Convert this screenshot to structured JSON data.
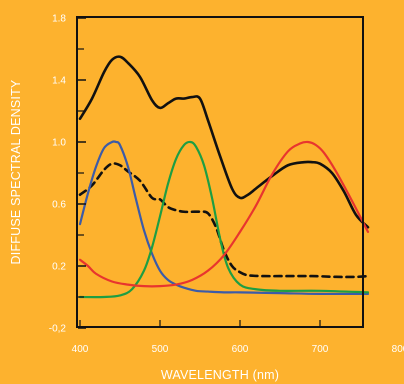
{
  "colors": {
    "background": "#FDB22E",
    "frame": "#111111",
    "tick_text": "#FFFFFF"
  },
  "chart_data": {
    "type": "line",
    "xlabel": "WAVELENGTH (nm)",
    "ylabel": "DIFFUSE SPECTRAL DENSITY",
    "xlim": [
      400,
      800
    ],
    "ylim": [
      -0.2,
      1.8
    ],
    "x_ticks": [
      {
        "value": 400,
        "label": "400"
      },
      {
        "value": 500,
        "label": "500"
      },
      {
        "value": 600,
        "label": "600"
      },
      {
        "value": 700,
        "label": "700"
      },
      {
        "value": 800,
        "label": "800"
      }
    ],
    "y_ticks": [
      {
        "value": -0.2,
        "label": "-0,2"
      },
      {
        "value": 0.2,
        "label": "0.2"
      },
      {
        "value": 0.6,
        "label": "0.6"
      },
      {
        "value": 1.0,
        "label": "1.0"
      },
      {
        "value": 1.4,
        "label": "1.4"
      },
      {
        "value": 1.8,
        "label": "1.8"
      }
    ],
    "y_minor_ticks": [
      0.0,
      0.4,
      0.8,
      1.2,
      1.6
    ],
    "grid": false,
    "legend": "none",
    "series": [
      {
        "color": "#111111",
        "style": "solid",
        "x": [
          400,
          415,
          430,
          440,
          450,
          460,
          475,
          490,
          500,
          510,
          520,
          530,
          540,
          550,
          560,
          575,
          590,
          600,
          610,
          620,
          640,
          660,
          680,
          690,
          700,
          715,
          730,
          745,
          760
        ],
        "y": [
          1.15,
          1.28,
          1.45,
          1.53,
          1.55,
          1.51,
          1.42,
          1.27,
          1.22,
          1.25,
          1.28,
          1.28,
          1.29,
          1.28,
          1.14,
          0.91,
          0.7,
          0.64,
          0.66,
          0.7,
          0.78,
          0.85,
          0.87,
          0.87,
          0.86,
          0.8,
          0.68,
          0.53,
          0.45
        ]
      },
      {
        "color": "#111111",
        "style": "dashed",
        "x": [
          400,
          415,
          430,
          440,
          450,
          460,
          475,
          490,
          500,
          510,
          520,
          530,
          540,
          550,
          560,
          570,
          580,
          590,
          600,
          610,
          630,
          660,
          690,
          720,
          745,
          760
        ],
        "y": [
          0.66,
          0.72,
          0.82,
          0.86,
          0.85,
          0.81,
          0.75,
          0.64,
          0.63,
          0.58,
          0.56,
          0.55,
          0.55,
          0.55,
          0.54,
          0.45,
          0.3,
          0.2,
          0.16,
          0.14,
          0.135,
          0.135,
          0.135,
          0.13,
          0.13,
          0.135
        ]
      },
      {
        "color": "#3C5BA8",
        "style": "solid",
        "x": [
          400,
          410,
          420,
          430,
          440,
          445,
          450,
          460,
          470,
          480,
          490,
          500,
          510,
          520,
          530,
          545,
          560,
          580,
          600,
          650,
          700,
          760
        ],
        "y": [
          0.47,
          0.67,
          0.84,
          0.96,
          1.0,
          1.0,
          0.98,
          0.84,
          0.63,
          0.43,
          0.28,
          0.17,
          0.11,
          0.08,
          0.06,
          0.04,
          0.035,
          0.03,
          0.03,
          0.025,
          0.02,
          0.02
        ]
      },
      {
        "color": "#1E9E43",
        "style": "solid",
        "x": [
          400,
          430,
          450,
          465,
          480,
          490,
          500,
          510,
          520,
          530,
          538,
          545,
          555,
          565,
          575,
          585,
          600,
          620,
          650,
          700,
          760
        ],
        "y": [
          0.0,
          0.0,
          0.01,
          0.05,
          0.17,
          0.32,
          0.52,
          0.73,
          0.89,
          0.98,
          1.0,
          0.97,
          0.85,
          0.64,
          0.38,
          0.19,
          0.08,
          0.05,
          0.04,
          0.04,
          0.03
        ]
      },
      {
        "color": "#E8352E",
        "style": "solid",
        "x": [
          400,
          410,
          420,
          440,
          460,
          480,
          500,
          520,
          540,
          560,
          580,
          600,
          620,
          640,
          660,
          675,
          685,
          695,
          705,
          720,
          740,
          760
        ],
        "y": [
          0.24,
          0.2,
          0.15,
          0.1,
          0.08,
          0.07,
          0.07,
          0.08,
          0.11,
          0.17,
          0.27,
          0.42,
          0.59,
          0.79,
          0.94,
          0.99,
          1.0,
          0.98,
          0.93,
          0.81,
          0.62,
          0.42
        ]
      }
    ]
  }
}
